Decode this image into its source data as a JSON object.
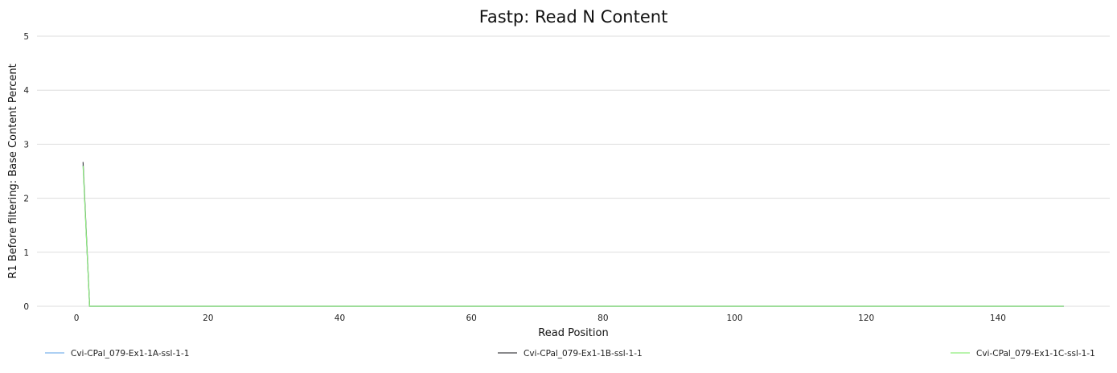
{
  "chart_data": {
    "type": "line",
    "title": "Fastp: Read N Content",
    "xlabel": "Read Position",
    "ylabel": "R1 Before filtering: Base Content Percent",
    "xlim": [
      -6,
      157
    ],
    "ylim": [
      0,
      5
    ],
    "x_ticks": [
      0,
      20,
      40,
      60,
      80,
      100,
      120,
      140
    ],
    "y_ticks": [
      0,
      1,
      2,
      3,
      4,
      5
    ],
    "grid": true,
    "legend_position": "bottom",
    "series": [
      {
        "name": "Cvi-CPal_079-Ex1-1A-ssl-1-1",
        "color": "#7cb5ec",
        "x": [
          1,
          2,
          3,
          10,
          20,
          40,
          60,
          80,
          100,
          120,
          140,
          150
        ],
        "y": [
          2.62,
          0.0,
          0.0,
          0.0,
          0.0,
          0.0,
          0.0,
          0.0,
          0.0,
          0.0,
          0.0,
          0.0
        ]
      },
      {
        "name": "Cvi-CPal_079-Ex1-1B-ssl-1-1",
        "color": "#434348",
        "x": [
          1,
          2,
          3,
          10,
          20,
          40,
          60,
          80,
          100,
          120,
          140,
          150
        ],
        "y": [
          2.67,
          0.0,
          0.0,
          0.0,
          0.0,
          0.0,
          0.0,
          0.0,
          0.0,
          0.0,
          0.0,
          0.0
        ]
      },
      {
        "name": "Cvi-CPal_079-Ex1-1C-ssl-1-1",
        "color": "#90ed7d",
        "x": [
          1,
          2,
          3,
          10,
          20,
          40,
          60,
          80,
          100,
          120,
          140,
          150
        ],
        "y": [
          2.6,
          0.0,
          0.0,
          0.0,
          0.0,
          0.0,
          0.0,
          0.0,
          0.0,
          0.0,
          0.0,
          0.0
        ]
      }
    ]
  }
}
